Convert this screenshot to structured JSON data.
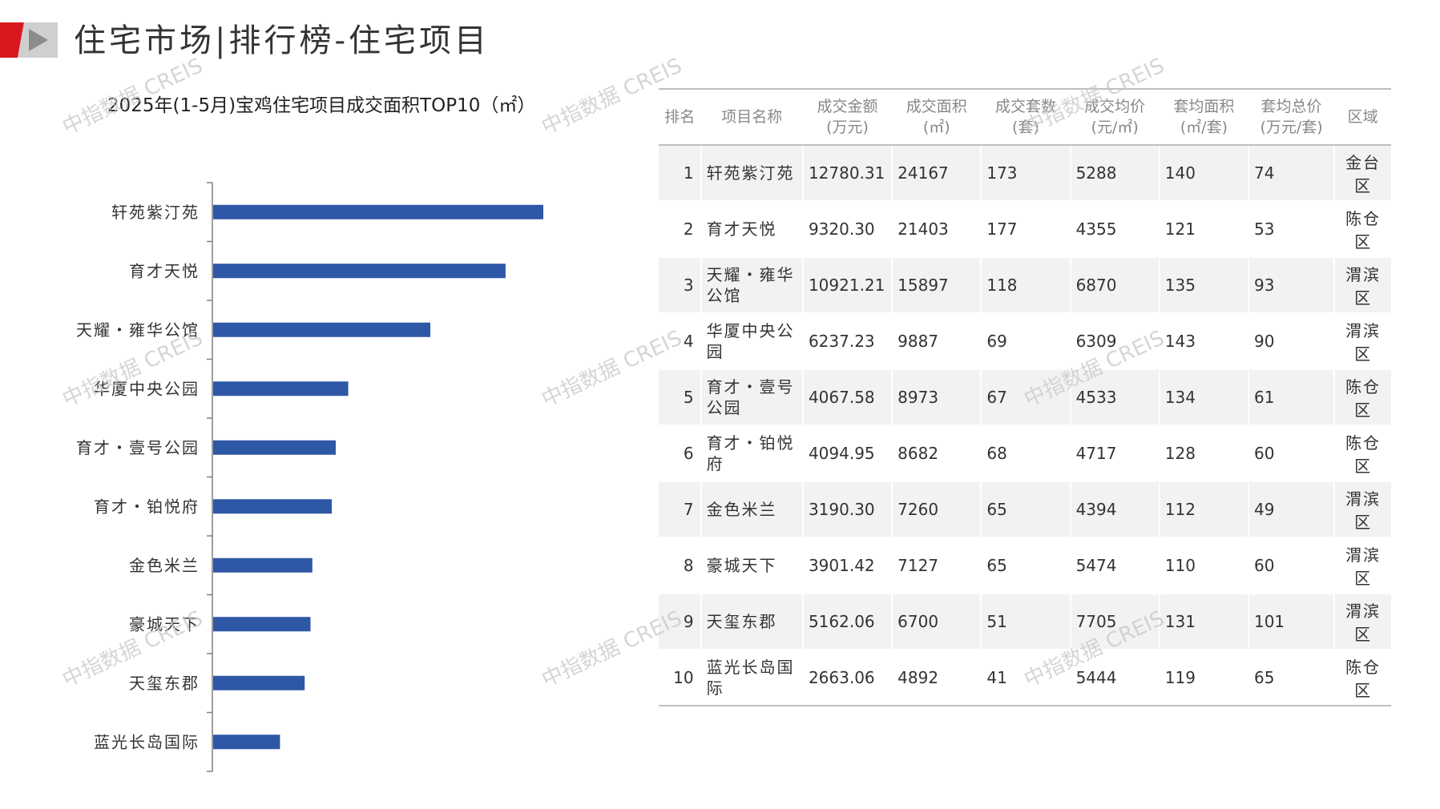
{
  "header": {
    "title": "住宅市场|排行榜-住宅项目"
  },
  "watermark_text": "中指数据 CREIS",
  "chart_data": {
    "type": "bar",
    "orientation": "horizontal",
    "title": "2025年(1-5月)宝鸡住宅项目成交面积TOP10（㎡）",
    "categories": [
      "轩苑紫汀苑",
      "育才天悦",
      "天耀・雍华公馆",
      "华厦中央公园",
      "育才・壹号公园",
      "育才・铂悦府",
      "金色米兰",
      "豪城天下",
      "天玺东郡",
      "蓝光长岛国际"
    ],
    "values": [
      24167,
      21403,
      15897,
      9887,
      8973,
      8682,
      7260,
      7127,
      6700,
      4892
    ],
    "color": "#2e57a6",
    "xlim": [
      0,
      30000
    ],
    "grid": false,
    "legend": "none"
  },
  "table": {
    "headers": [
      [
        "排名"
      ],
      [
        "项目名称"
      ],
      [
        "成交金额",
        "(万元)"
      ],
      [
        "成交面积",
        "(㎡)"
      ],
      [
        "成交套数",
        "(套)"
      ],
      [
        "成交均价",
        "(元/㎡)"
      ],
      [
        "套均面积",
        "(㎡/套)"
      ],
      [
        "套均总价",
        "(万元/套)"
      ],
      [
        "区域"
      ]
    ],
    "rows": [
      {
        "rank": "1",
        "name": "轩苑紫汀苑",
        "amount": "12780.31",
        "area": "24167",
        "units": "173",
        "price": "5288",
        "avg_area": "140",
        "avg_total": "74",
        "region": "金台区"
      },
      {
        "rank": "2",
        "name": "育才天悦",
        "amount": "9320.30",
        "area": "21403",
        "units": "177",
        "price": "4355",
        "avg_area": "121",
        "avg_total": "53",
        "region": "陈仓区"
      },
      {
        "rank": "3",
        "name": "天耀・雍华公馆",
        "amount": "10921.21",
        "area": "15897",
        "units": "118",
        "price": "6870",
        "avg_area": "135",
        "avg_total": "93",
        "region": "渭滨区"
      },
      {
        "rank": "4",
        "name": "华厦中央公园",
        "amount": "6237.23",
        "area": "9887",
        "units": "69",
        "price": "6309",
        "avg_area": "143",
        "avg_total": "90",
        "region": "渭滨区"
      },
      {
        "rank": "5",
        "name": "育才・壹号公园",
        "amount": "4067.58",
        "area": "8973",
        "units": "67",
        "price": "4533",
        "avg_area": "134",
        "avg_total": "61",
        "region": "陈仓区"
      },
      {
        "rank": "6",
        "name": "育才・铂悦府",
        "amount": "4094.95",
        "area": "8682",
        "units": "68",
        "price": "4717",
        "avg_area": "128",
        "avg_total": "60",
        "region": "陈仓区"
      },
      {
        "rank": "7",
        "name": "金色米兰",
        "amount": "3190.30",
        "area": "7260",
        "units": "65",
        "price": "4394",
        "avg_area": "112",
        "avg_total": "49",
        "region": "渭滨区"
      },
      {
        "rank": "8",
        "name": "豪城天下",
        "amount": "3901.42",
        "area": "7127",
        "units": "65",
        "price": "5474",
        "avg_area": "110",
        "avg_total": "60",
        "region": "渭滨区"
      },
      {
        "rank": "9",
        "name": "天玺东郡",
        "amount": "5162.06",
        "area": "6700",
        "units": "51",
        "price": "7705",
        "avg_area": "131",
        "avg_total": "101",
        "region": "渭滨区"
      },
      {
        "rank": "10",
        "name": "蓝光长岛国际",
        "amount": "2663.06",
        "area": "4892",
        "units": "41",
        "price": "5444",
        "avg_area": "119",
        "avg_total": "65",
        "region": "陈仓区"
      }
    ]
  }
}
